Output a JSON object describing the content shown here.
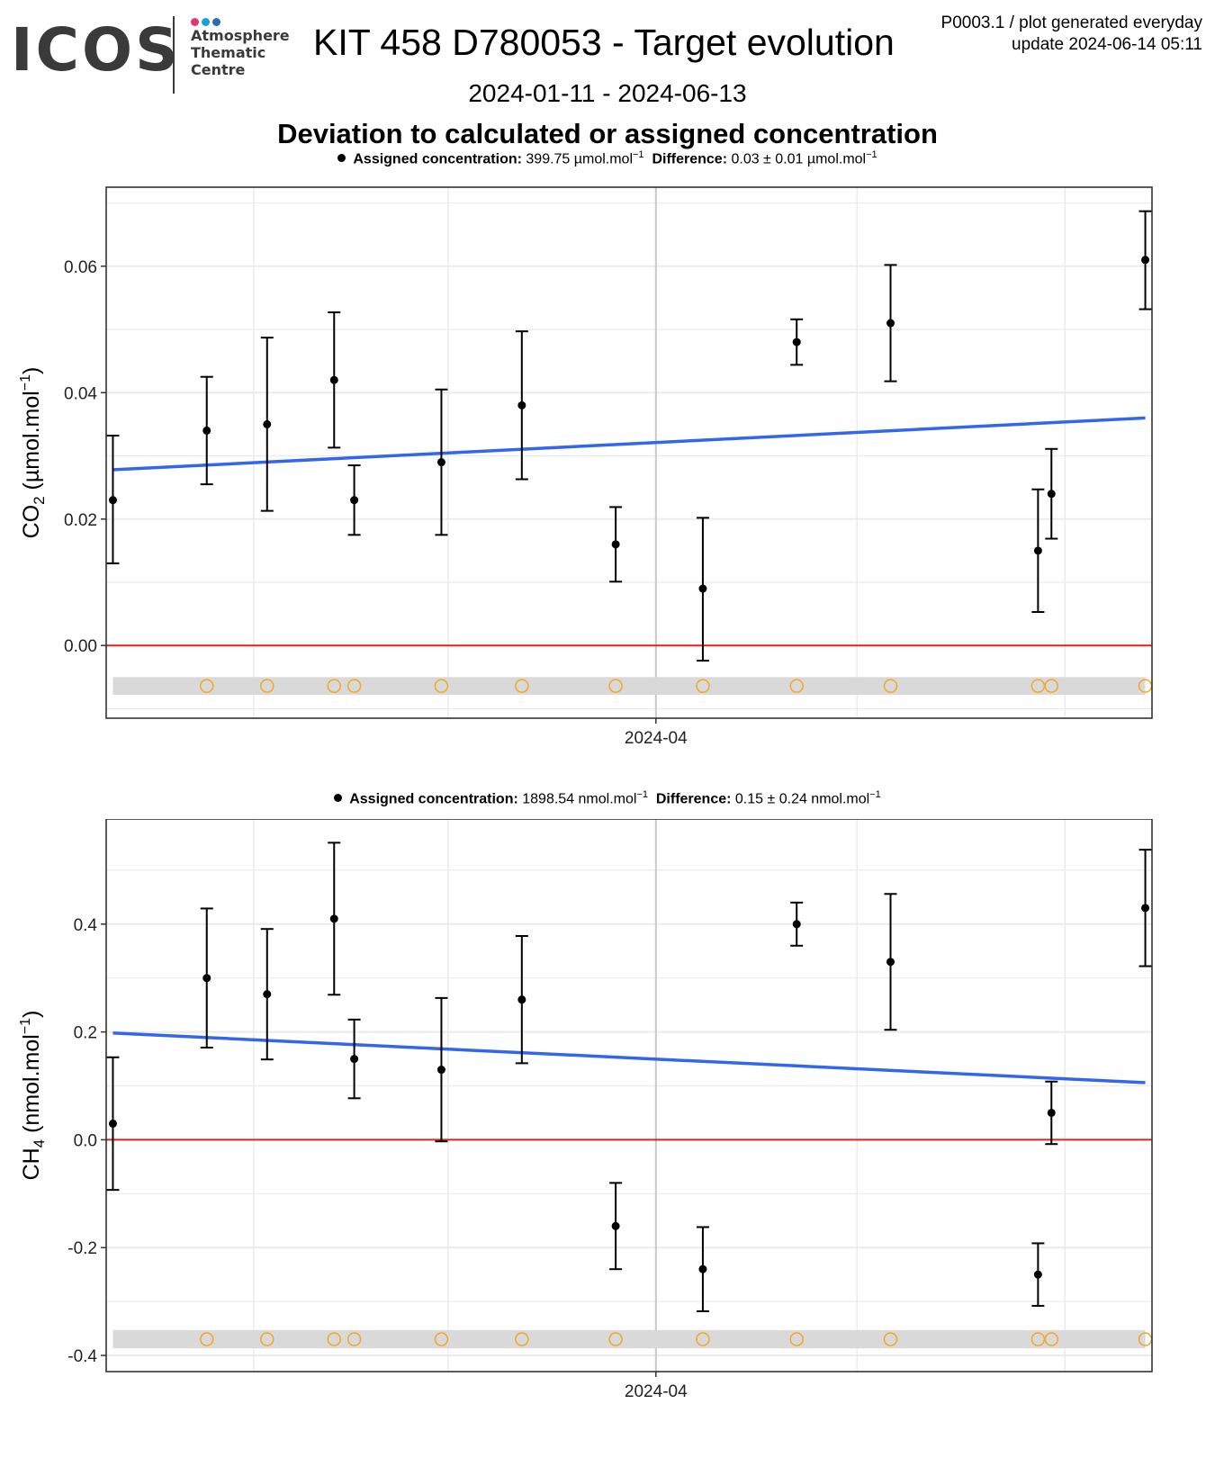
{
  "logo": {
    "word": "ICOS",
    "line1": "Atmosphere",
    "line2": "Thematic",
    "line3": "Centre",
    "dot_colors": [
      "#e0367a",
      "#1aa3d8",
      "#2f6ab4"
    ]
  },
  "header": {
    "title": "KIT 458 D780053 - Target evolution",
    "info_line1": "P0003.1 / plot generated everyday",
    "info_line2": "update  2024-06-14 05:11",
    "date_range": "2024-01-11 - 2024-06-13",
    "subtitle": "Deviation to calculated or assigned concentration"
  },
  "colors": {
    "trend": "#3366ee",
    "zero_line": "#e32222",
    "points": "#000000",
    "flag_marker": "#f5a623",
    "flag_band": "#d9d9d9",
    "grid": "#ebebeb"
  },
  "chart_data": [
    {
      "type": "scatter",
      "id": "co2",
      "legend": {
        "assigned_label": "Assigned concentration:",
        "assigned_value": "399.75 µmol.mol",
        "diff_label": "Difference:",
        "diff_value": "0.03 ± 0.01 µmol.mol",
        "unit_exp": "−1"
      },
      "ylabel": "CO",
      "ylabel_sub": "2",
      "ylabel_unit": " (µmol.mol",
      "ylabel_exp": "−1",
      "ylabel_end": ")",
      "xlim": [
        "2024-01-10",
        "2024-06-14"
      ],
      "ylim": [
        -0.0115,
        0.0725
      ],
      "yticks": [
        0.0,
        0.02,
        0.04,
        0.06
      ],
      "ytick_labels": [
        "0.00",
        "0.02",
        "0.04",
        "0.06"
      ],
      "xticks": [
        "2024-04-01"
      ],
      "xtick_labels": [
        "2024-04"
      ],
      "x_minor_grid": [
        "2024-02-01",
        "2024-03-01",
        "2024-05-01",
        "2024-06-01"
      ],
      "points": [
        {
          "x": "2024-01-11",
          "y": 0.023,
          "lo": 0.013,
          "hi": 0.0332
        },
        {
          "x": "2024-01-25",
          "y": 0.034,
          "lo": 0.0255,
          "hi": 0.0425
        },
        {
          "x": "2024-02-03",
          "y": 0.035,
          "lo": 0.0213,
          "hi": 0.0487
        },
        {
          "x": "2024-02-13",
          "y": 0.042,
          "lo": 0.0313,
          "hi": 0.0527
        },
        {
          "x": "2024-02-16",
          "y": 0.023,
          "lo": 0.0175,
          "hi": 0.0285
        },
        {
          "x": "2024-02-29",
          "y": 0.029,
          "lo": 0.0175,
          "hi": 0.0405
        },
        {
          "x": "2024-03-12",
          "y": 0.038,
          "lo": 0.0263,
          "hi": 0.0497
        },
        {
          "x": "2024-03-26",
          "y": 0.016,
          "lo": 0.0101,
          "hi": 0.0219
        },
        {
          "x": "2024-04-08",
          "y": 0.009,
          "lo": -0.0024,
          "hi": 0.0202
        },
        {
          "x": "2024-04-22",
          "y": 0.048,
          "lo": 0.0444,
          "hi": 0.0516
        },
        {
          "x": "2024-05-06",
          "y": 0.051,
          "lo": 0.0418,
          "hi": 0.0602
        },
        {
          "x": "2024-05-28",
          "y": 0.015,
          "lo": 0.0053,
          "hi": 0.0247
        },
        {
          "x": "2024-05-30",
          "y": 0.024,
          "lo": 0.0169,
          "hi": 0.0311
        },
        {
          "x": "2024-06-13",
          "y": 0.061,
          "lo": 0.0532,
          "hi": 0.0687
        }
      ],
      "trend": {
        "x": [
          "2024-01-11",
          "2024-06-13"
        ],
        "y": [
          0.0278,
          0.036
        ]
      },
      "flag_band": [
        -0.0078,
        -0.005
      ],
      "flag_y": -0.0064,
      "flag_x": [
        "2024-01-25",
        "2024-02-03",
        "2024-02-13",
        "2024-02-16",
        "2024-02-29",
        "2024-03-12",
        "2024-03-26",
        "2024-04-08",
        "2024-04-22",
        "2024-05-06",
        "2024-05-28",
        "2024-05-30",
        "2024-06-13"
      ]
    },
    {
      "type": "scatter",
      "id": "ch4",
      "legend": {
        "assigned_label": "Assigned concentration:",
        "assigned_value": "1898.54 nmol.mol",
        "diff_label": "Difference:",
        "diff_value": "0.15 ± 0.24 nmol.mol",
        "unit_exp": "−1"
      },
      "ylabel": "CH",
      "ylabel_sub": "4",
      "ylabel_unit": " (nmol.mol",
      "ylabel_exp": "−1",
      "ylabel_end": ")",
      "xlim": [
        "2024-01-10",
        "2024-06-14"
      ],
      "ylim": [
        -0.43,
        0.595
      ],
      "yticks": [
        -0.4,
        -0.2,
        0.0,
        0.2,
        0.4
      ],
      "ytick_labels": [
        "-0.4",
        "-0.2",
        "0.0",
        "0.2",
        "0.4"
      ],
      "xticks": [
        "2024-04-01"
      ],
      "xtick_labels": [
        "2024-04"
      ],
      "x_minor_grid": [
        "2024-02-01",
        "2024-03-01",
        "2024-05-01",
        "2024-06-01"
      ],
      "points": [
        {
          "x": "2024-01-11",
          "y": 0.03,
          "lo": -0.093,
          "hi": 0.153
        },
        {
          "x": "2024-01-25",
          "y": 0.3,
          "lo": 0.171,
          "hi": 0.429
        },
        {
          "x": "2024-02-03",
          "y": 0.27,
          "lo": 0.149,
          "hi": 0.391
        },
        {
          "x": "2024-02-13",
          "y": 0.41,
          "lo": 0.269,
          "hi": 0.551
        },
        {
          "x": "2024-02-16",
          "y": 0.15,
          "lo": 0.077,
          "hi": 0.223
        },
        {
          "x": "2024-02-29",
          "y": 0.13,
          "lo": -0.003,
          "hi": 0.263
        },
        {
          "x": "2024-03-12",
          "y": 0.26,
          "lo": 0.142,
          "hi": 0.378
        },
        {
          "x": "2024-03-26",
          "y": -0.16,
          "lo": -0.24,
          "hi": -0.08
        },
        {
          "x": "2024-04-08",
          "y": -0.24,
          "lo": -0.318,
          "hi": -0.162
        },
        {
          "x": "2024-04-22",
          "y": 0.4,
          "lo": 0.36,
          "hi": 0.44
        },
        {
          "x": "2024-05-06",
          "y": 0.33,
          "lo": 0.204,
          "hi": 0.456
        },
        {
          "x": "2024-05-28",
          "y": -0.25,
          "lo": -0.308,
          "hi": -0.192
        },
        {
          "x": "2024-05-30",
          "y": 0.05,
          "lo": -0.008,
          "hi": 0.108
        },
        {
          "x": "2024-06-13",
          "y": 0.43,
          "lo": 0.322,
          "hi": 0.538
        }
      ],
      "trend": {
        "x": [
          "2024-01-11",
          "2024-06-13"
        ],
        "y": [
          0.198,
          0.106
        ]
      },
      "flag_band": [
        -0.387,
        -0.353
      ],
      "flag_y": -0.37,
      "flag_x": [
        "2024-01-25",
        "2024-02-03",
        "2024-02-13",
        "2024-02-16",
        "2024-02-29",
        "2024-03-12",
        "2024-03-26",
        "2024-04-08",
        "2024-04-22",
        "2024-05-06",
        "2024-05-28",
        "2024-05-30",
        "2024-06-13"
      ]
    }
  ]
}
